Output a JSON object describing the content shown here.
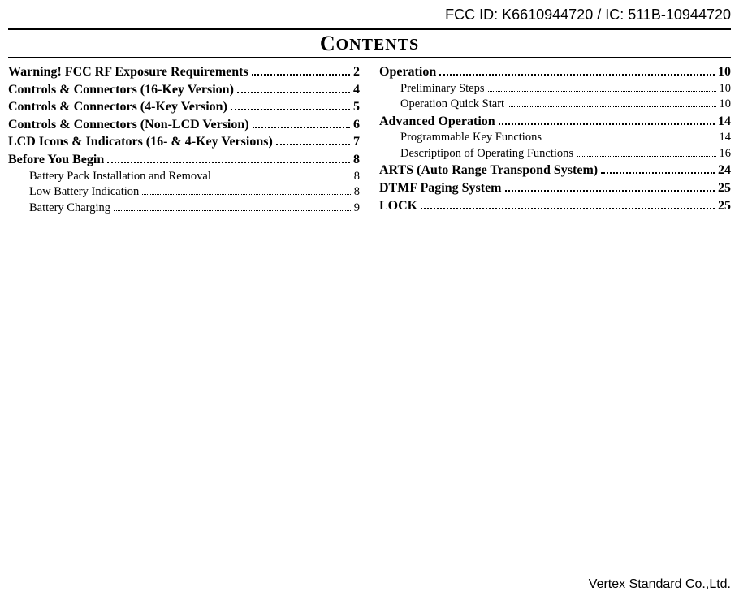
{
  "header": {
    "id_text": "FCC ID: K6610944720 / IC: 511B-10944720"
  },
  "title": {
    "first_letter": "C",
    "rest": "ONTENTS"
  },
  "toc": {
    "left": [
      {
        "label": "Warning! FCC RF Exposure Requirements",
        "page": "2",
        "bold": true,
        "sub": false
      },
      {
        "label": "Controls & Connectors (16-Key Version)",
        "page": "4",
        "bold": true,
        "sub": false
      },
      {
        "label": "Controls & Connectors (4-Key Version)",
        "page": "5",
        "bold": true,
        "sub": false
      },
      {
        "label": "Controls & Connectors (Non-LCD Version)",
        "page": "6",
        "bold": true,
        "sub": false
      },
      {
        "label": "LCD Icons & Indicators (16- & 4-Key Versions)",
        "page": "7",
        "bold": true,
        "sub": false
      },
      {
        "label": "Before You Begin",
        "page": "8",
        "bold": true,
        "sub": false
      },
      {
        "label": "Battery Pack Installation and Removal",
        "page": "8",
        "bold": false,
        "sub": true
      },
      {
        "label": "Low Battery Indication",
        "page": "8",
        "bold": false,
        "sub": true
      },
      {
        "label": "Battery Charging",
        "page": "9",
        "bold": false,
        "sub": true
      }
    ],
    "right": [
      {
        "label": "Operation",
        "page": "10",
        "bold": true,
        "sub": false
      },
      {
        "label": "Preliminary Steps",
        "page": "10",
        "bold": false,
        "sub": true
      },
      {
        "label": "Operation Quick Start",
        "page": "10",
        "bold": false,
        "sub": true
      },
      {
        "label": "Advanced Operation",
        "page": "14",
        "bold": true,
        "sub": false
      },
      {
        "label": "Programmable Key Functions",
        "page": "14",
        "bold": false,
        "sub": true
      },
      {
        "label": "Descriptipon of Operating Functions",
        "page": "16",
        "bold": false,
        "sub": true
      },
      {
        "label": "ARTS (Auto Range Transpond System)",
        "page": "24",
        "bold": true,
        "sub": false
      },
      {
        "label": "DTMF Paging System",
        "page": "25",
        "bold": true,
        "sub": false
      },
      {
        "label": "LOCK",
        "page": "25",
        "bold": true,
        "sub": false
      }
    ]
  },
  "footer": {
    "text": "Vertex Standard Co.,Ltd."
  }
}
